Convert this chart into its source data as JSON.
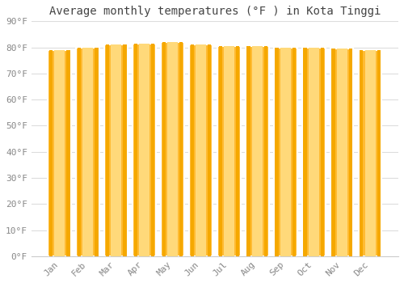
{
  "title": "Average monthly temperatures (°F ) in Kota Tinggi",
  "months": [
    "Jan",
    "Feb",
    "Mar",
    "Apr",
    "May",
    "Jun",
    "Jul",
    "Aug",
    "Sep",
    "Oct",
    "Nov",
    "Dec"
  ],
  "values": [
    79.0,
    80.0,
    81.0,
    81.5,
    82.0,
    81.0,
    80.5,
    80.5,
    80.0,
    80.0,
    79.5,
    79.0
  ],
  "bar_color_main": "#FFBB33",
  "bar_color_light": "#FFD97A",
  "bar_color_dark": "#F5A800",
  "background_color": "#FFFFFF",
  "plot_bg_color": "#FFFFFF",
  "grid_color": "#DDDDDD",
  "text_color": "#888888",
  "title_color": "#444444",
  "spine_color": "#CCCCCC",
  "ylim": [
    0,
    90
  ],
  "yticks": [
    0,
    10,
    20,
    30,
    40,
    50,
    60,
    70,
    80,
    90
  ],
  "ytick_labels": [
    "0°F",
    "10°F",
    "20°F",
    "30°F",
    "40°F",
    "50°F",
    "60°F",
    "70°F",
    "80°F",
    "90°F"
  ],
  "title_fontsize": 10,
  "tick_fontsize": 8,
  "bar_width": 0.82
}
